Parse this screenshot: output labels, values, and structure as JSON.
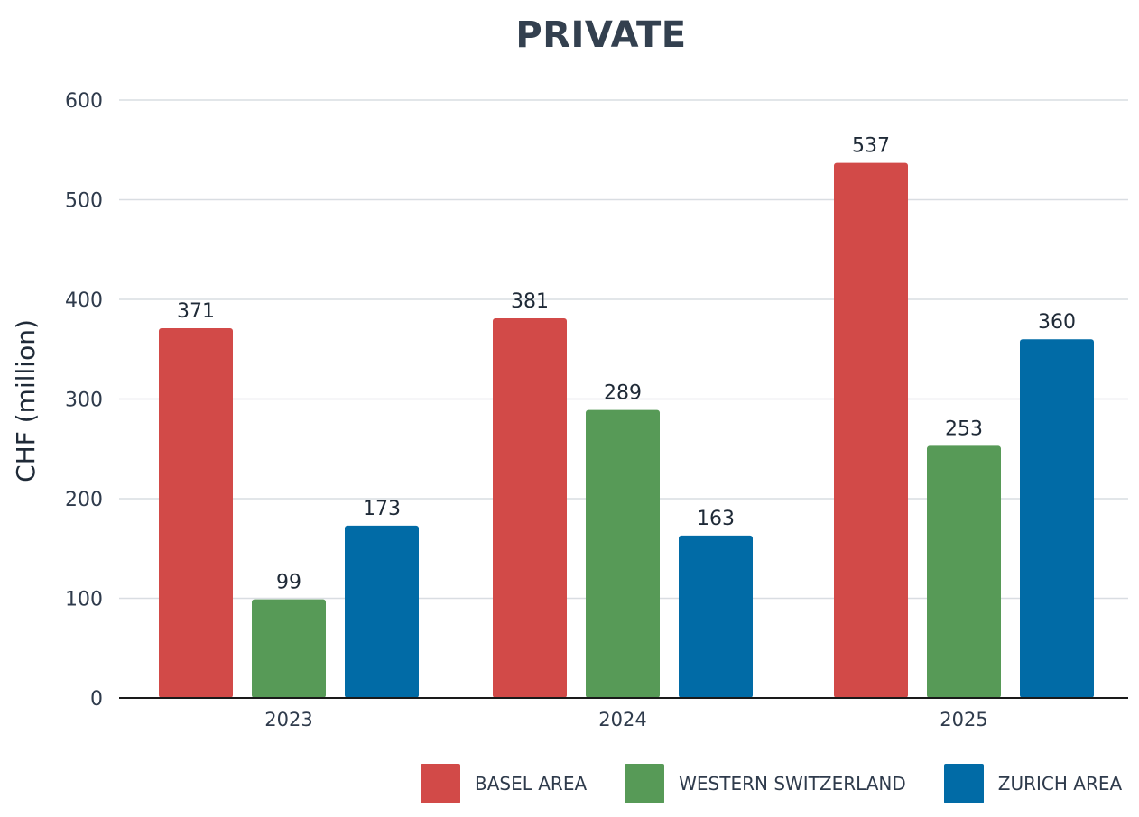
{
  "chart_data": {
    "type": "bar",
    "title": "PRIVATE",
    "ylabel": "CHF (million)",
    "xlabel": "",
    "categories": [
      "2023",
      "2024",
      "2025"
    ],
    "ylim": [
      0,
      600
    ],
    "yticks": [
      0,
      100,
      200,
      300,
      400,
      500,
      600
    ],
    "grid": true,
    "legend_position": "bottom-right",
    "series": [
      {
        "name": "BASEL AREA",
        "color": "#d24a48",
        "values": [
          371,
          381,
          537
        ]
      },
      {
        "name": "WESTERN SWITZERLAND",
        "color": "#579a57",
        "values": [
          99,
          289,
          253
        ]
      },
      {
        "name": "ZURICH AREA",
        "color": "#016ba6",
        "values": [
          173,
          163,
          360
        ]
      }
    ]
  }
}
